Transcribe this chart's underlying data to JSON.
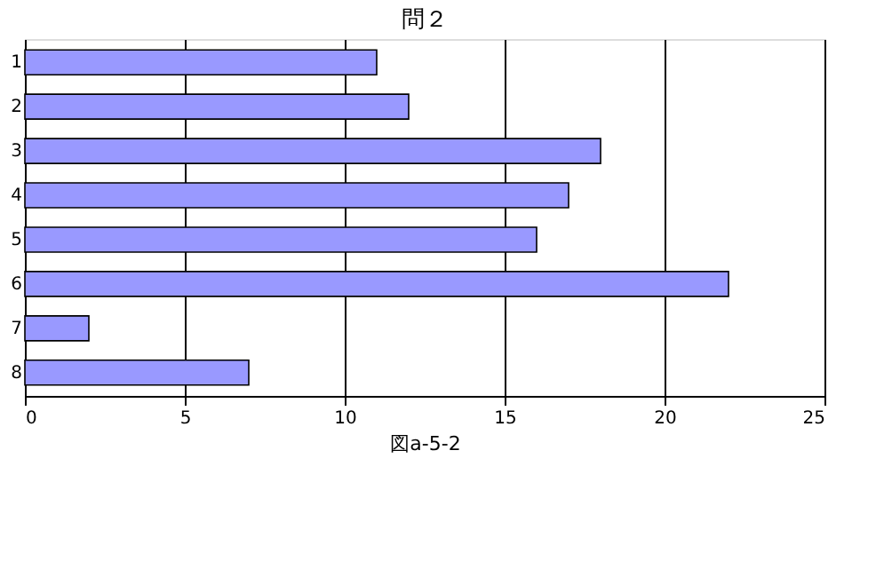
{
  "chart_data": {
    "type": "bar",
    "orientation": "horizontal",
    "title": "問２",
    "xlabel": "図a-5-2",
    "categories": [
      "1",
      "2",
      "3",
      "4",
      "5",
      "6",
      "7",
      "8"
    ],
    "values": [
      11,
      12,
      18,
      17,
      16,
      22,
      2,
      7
    ],
    "color": "#9999ff",
    "xlim": [
      0,
      25
    ],
    "xticks": [
      0,
      5,
      10,
      15,
      20,
      25
    ],
    "grid": "x"
  }
}
